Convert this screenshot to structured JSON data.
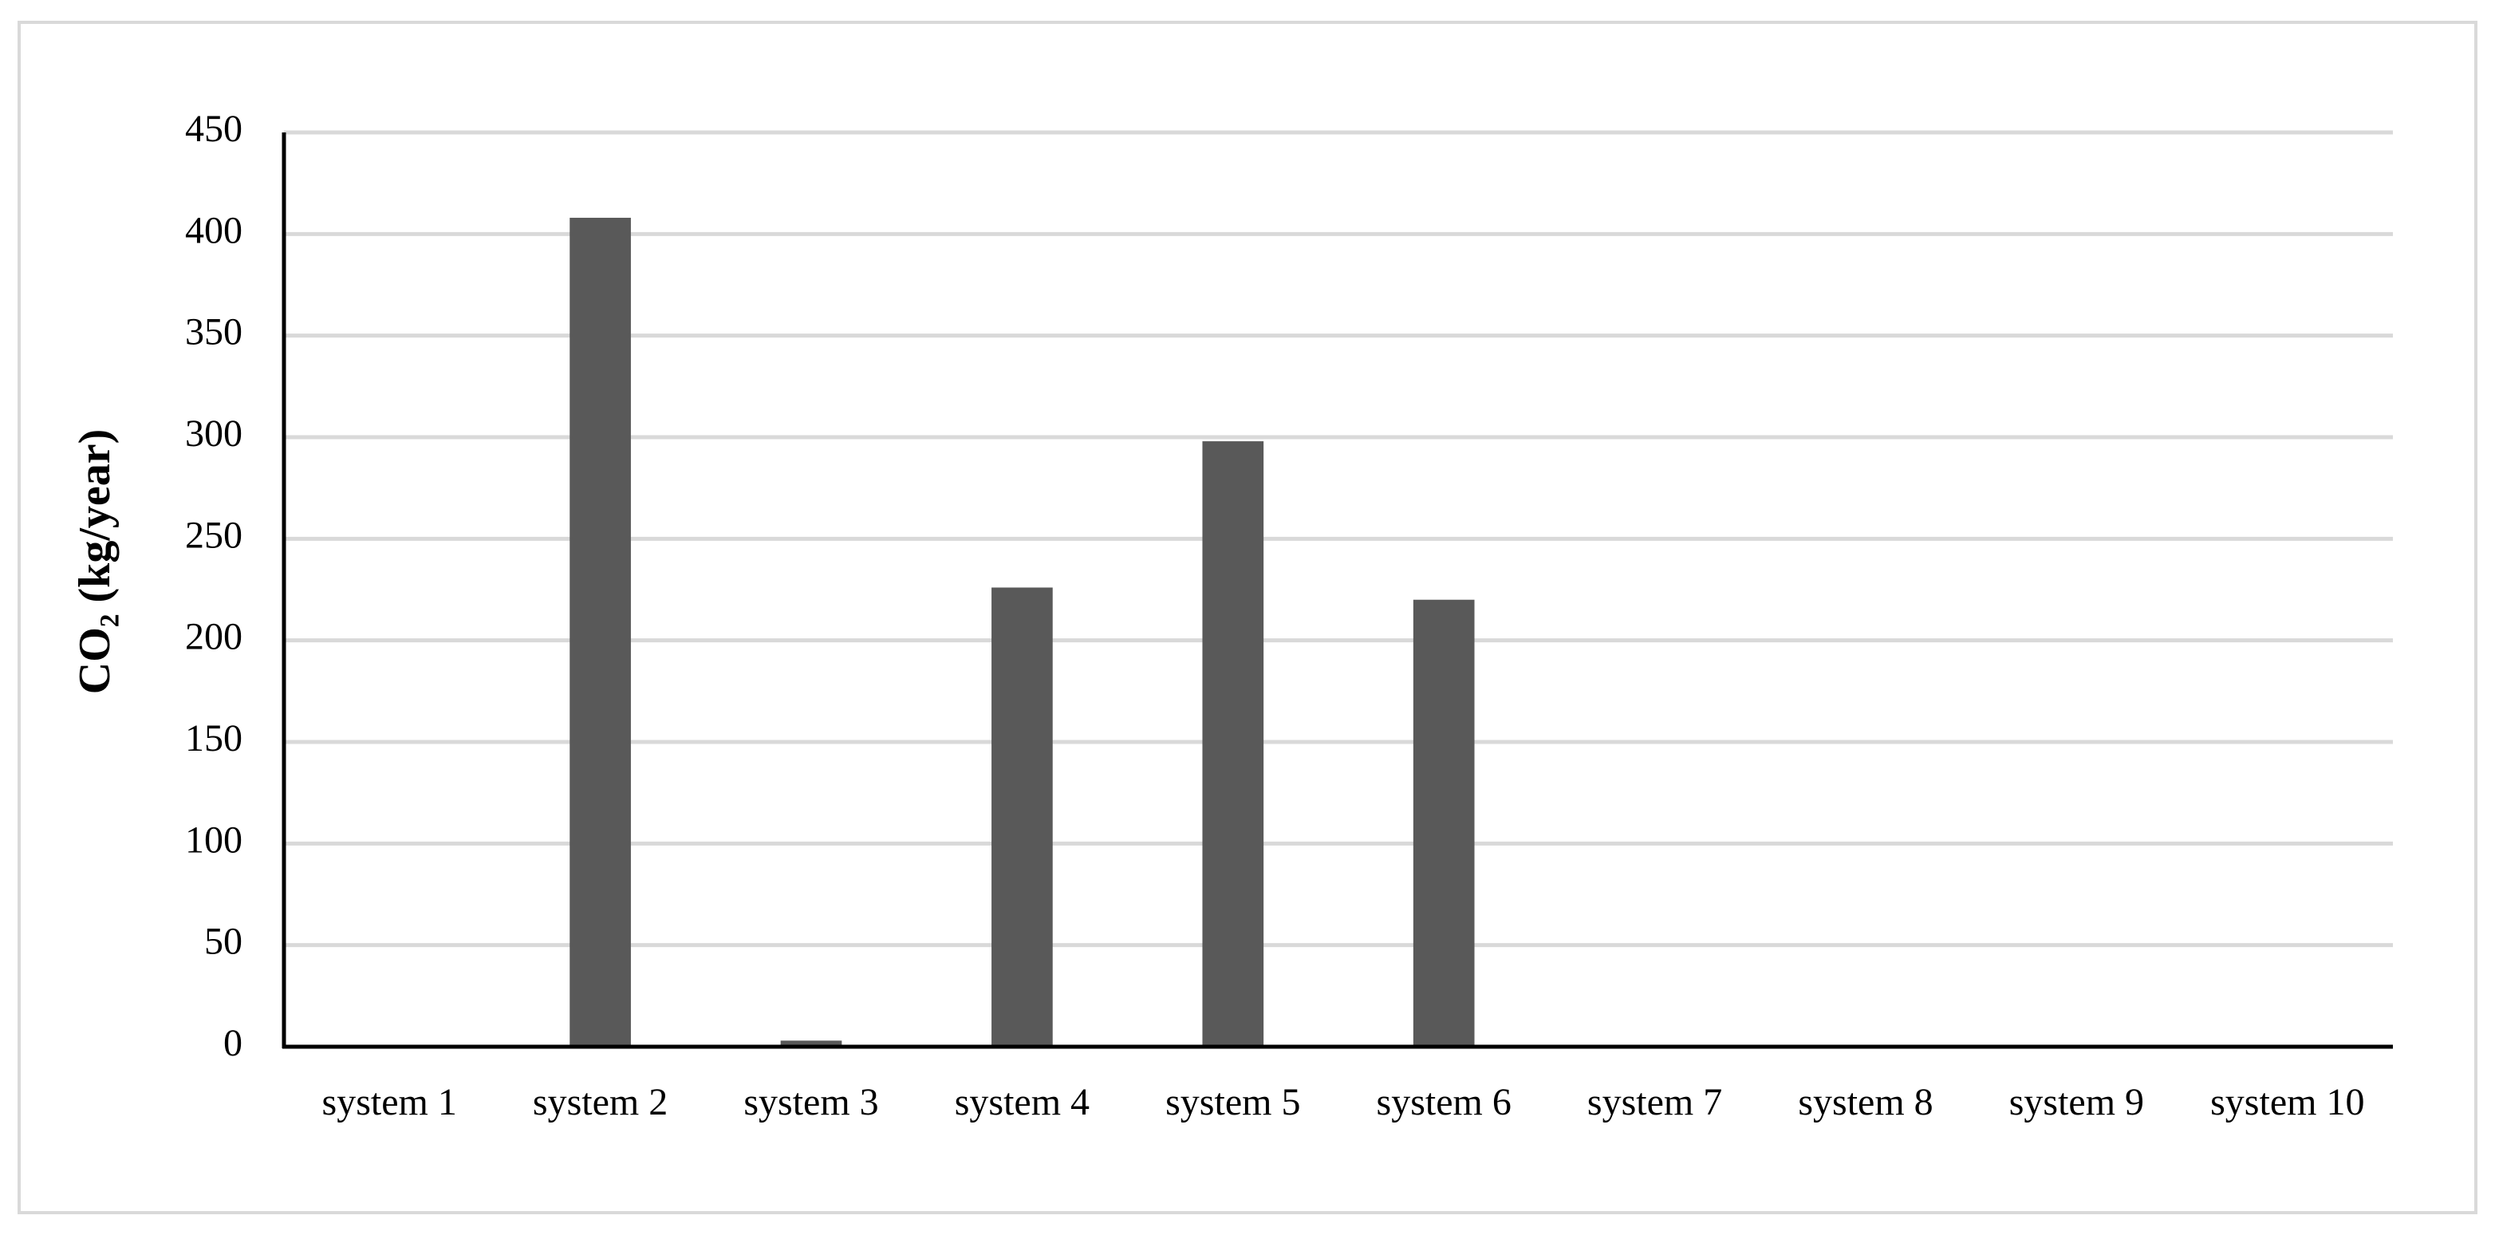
{
  "chart_data": {
    "type": "bar",
    "y_label": "CO₂ (kg/year)",
    "categories": [
      "system 1",
      "system 2",
      "system 3",
      "system 4",
      "system 5",
      "system 6",
      "system 7",
      "system 8",
      "system 9",
      "system 10"
    ],
    "values": [
      0,
      408,
      3,
      226,
      298,
      220,
      0,
      0,
      0,
      0
    ],
    "color": "#595959",
    "ylim": [
      0,
      450
    ],
    "yticks": [
      0,
      50,
      100,
      150,
      200,
      250,
      300,
      350,
      400,
      450
    ],
    "grid": true
  }
}
